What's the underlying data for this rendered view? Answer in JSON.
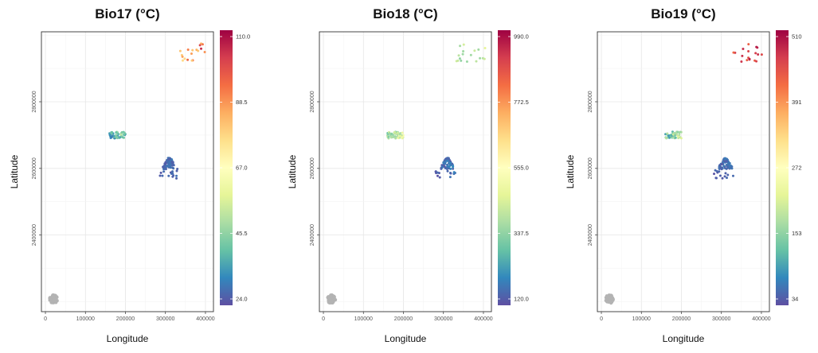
{
  "chart_data": [
    {
      "type": "scatter",
      "title": "Bio17 (°C)",
      "xlabel": "Longitude",
      "ylabel": "Latitude",
      "xlim": [
        -10000,
        420000
      ],
      "ylim": [
        2170000,
        3010000
      ],
      "x_ticks": [
        0,
        100000,
        200000,
        300000,
        400000
      ],
      "y_ticks": [
        2400000,
        2600000,
        2800000
      ],
      "grid": true,
      "colorbar": {
        "min": 24.0,
        "max": 110.0,
        "ticks": [
          "24.0",
          "45.5",
          "67.0",
          "88.5",
          "110.0"
        ],
        "palette": "Spectral (reversed)"
      },
      "groups": [
        {
          "x_range": [
            10000,
            30000
          ],
          "y_range": [
            2195000,
            2220000
          ],
          "value": null,
          "count": 60
        },
        {
          "x_range": [
            160000,
            200000
          ],
          "y_range": [
            2690000,
            2710000
          ],
          "value_range": [
            28,
            55
          ],
          "count": 50
        },
        {
          "x_range": [
            290000,
            330000
          ],
          "y_range": [
            2598000,
            2632000
          ],
          "value_range": [
            25,
            32
          ],
          "count": 70
        },
        {
          "x_range": [
            280000,
            330000
          ],
          "y_range": [
            2570000,
            2595000
          ],
          "value_range": [
            24,
            30
          ],
          "count": 14
        },
        {
          "x_range": [
            330000,
            405000
          ],
          "y_range": [
            2920000,
            2975000
          ],
          "value_range": [
            70,
            110
          ],
          "count": 18
        }
      ]
    },
    {
      "type": "scatter",
      "title": "Bio18 (°C)",
      "xlabel": "Longitude",
      "ylabel": "Latitude",
      "xlim": [
        -10000,
        420000
      ],
      "ylim": [
        2170000,
        3010000
      ],
      "x_ticks": [
        0,
        100000,
        200000,
        300000,
        400000
      ],
      "y_ticks": [
        2400000,
        2600000,
        2800000
      ],
      "grid": true,
      "colorbar": {
        "min": 120.0,
        "max": 990.0,
        "ticks": [
          "120.0",
          "337.5",
          "555.0",
          "772.5",
          "990.0"
        ],
        "palette": "Spectral (reversed)"
      },
      "groups": [
        {
          "x_range": [
            10000,
            30000
          ],
          "y_range": [
            2195000,
            2220000
          ],
          "value": null,
          "count": 60
        },
        {
          "x_range": [
            160000,
            200000
          ],
          "y_range": [
            2690000,
            2710000
          ],
          "value_range": [
            300,
            520
          ],
          "count": 50
        },
        {
          "x_range": [
            290000,
            330000
          ],
          "y_range": [
            2598000,
            2632000
          ],
          "value_range": [
            130,
            220
          ],
          "count": 70
        },
        {
          "x_range": [
            280000,
            330000
          ],
          "y_range": [
            2570000,
            2595000
          ],
          "value_range": [
            120,
            200
          ],
          "count": 14
        },
        {
          "x_range": [
            330000,
            405000
          ],
          "y_range": [
            2920000,
            2975000
          ],
          "value_range": [
            320,
            480
          ],
          "count": 18
        }
      ]
    },
    {
      "type": "scatter",
      "title": "Bio19 (°C)",
      "xlabel": "Longitude",
      "ylabel": "Latitude",
      "xlim": [
        -10000,
        420000
      ],
      "ylim": [
        2170000,
        3010000
      ],
      "x_ticks": [
        0,
        100000,
        200000,
        300000,
        400000
      ],
      "y_ticks": [
        2400000,
        2600000,
        2800000
      ],
      "grid": true,
      "colorbar": {
        "min": 34,
        "max": 510,
        "ticks": [
          "34",
          "153",
          "272",
          "391",
          "510"
        ],
        "palette": "Spectral (reversed)"
      },
      "groups": [
        {
          "x_range": [
            10000,
            30000
          ],
          "y_range": [
            2195000,
            2220000
          ],
          "value": null,
          "count": 60
        },
        {
          "x_range": [
            160000,
            200000
          ],
          "y_range": [
            2690000,
            2710000
          ],
          "value_range": [
            80,
            240
          ],
          "count": 50
        },
        {
          "x_range": [
            290000,
            330000
          ],
          "y_range": [
            2598000,
            2632000
          ],
          "value_range": [
            34,
            80
          ],
          "count": 70
        },
        {
          "x_range": [
            280000,
            330000
          ],
          "y_range": [
            2570000,
            2595000
          ],
          "value_range": [
            34,
            70
          ],
          "count": 14
        },
        {
          "x_range": [
            330000,
            405000
          ],
          "y_range": [
            2920000,
            2975000
          ],
          "value_range": [
            400,
            510
          ],
          "count": 18
        }
      ]
    }
  ]
}
